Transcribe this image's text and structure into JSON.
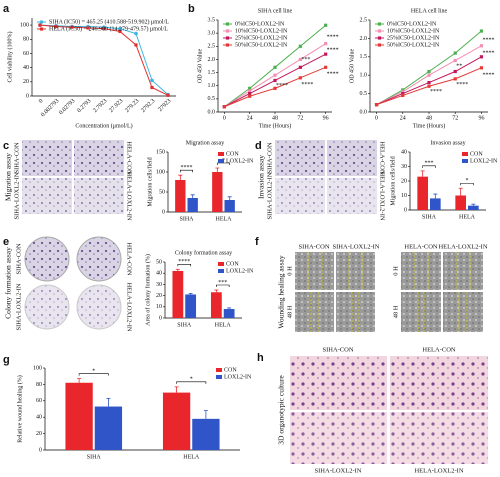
{
  "panels": {
    "labels": [
      "a",
      "b",
      "c",
      "d",
      "e",
      "f",
      "g",
      "h"
    ]
  },
  "chart_data": [
    {
      "type": "line",
      "x_label": "Concentration (μmol/L)",
      "y_label": "Cell viability (100%)",
      "categories": [
        "0",
        "0.002793",
        "0.02793",
        "0.2793",
        "2.7923",
        "27.923",
        "279.23",
        "2792.3",
        "27923"
      ],
      "ylim": [
        0,
        110
      ],
      "yticks": [
        0,
        20,
        40,
        60,
        80,
        100
      ],
      "series": [
        {
          "name": "SIHA (IC50) = 465.25 (410.588-519.902) μmol/L",
          "color": "#3fb7e0",
          "marker": "circle",
          "values": [
            100,
            99,
            98,
            98,
            97,
            95,
            88,
            22,
            2
          ]
        },
        {
          "name": "HELA (IC50) = 246.909 (14.279-479.57) μmol/L",
          "color": "#e03030",
          "marker": "square",
          "values": [
            100,
            98,
            97,
            96,
            95,
            91,
            72,
            12,
            1
          ]
        }
      ]
    },
    {
      "type": "line",
      "title": "SIHA cell line",
      "x_label": "Time (Hours)",
      "y_label": "OD 450 Value",
      "x": [
        0,
        24,
        48,
        72,
        96
      ],
      "xlim": [
        -6,
        102
      ],
      "xticks": [
        0,
        24,
        48,
        72,
        96
      ],
      "ylim": [
        0,
        3.5
      ],
      "yticks": [
        {
          "value": 0,
          "label": "0.0"
        },
        0.5,
        {
          "value": 1,
          "label": "1.0"
        },
        1.5,
        {
          "value": 2,
          "label": "2.0"
        },
        2.5,
        {
          "value": 3,
          "label": "3.0"
        },
        3.5
      ],
      "series": [
        {
          "name": "0%IC50-LOXL2-IN",
          "color": "#4caf50",
          "marker": "square",
          "values": [
            0.2,
            0.9,
            1.7,
            2.5,
            3.3
          ]
        },
        {
          "name": "10%IC50-LOXL2-IN",
          "color": "#f48fb1",
          "marker": "square",
          "values": [
            0.2,
            0.8,
            1.4,
            2.0,
            2.6
          ]
        },
        {
          "name": "25%IC50-LOXL2-IN",
          "color": "#c2185b",
          "marker": "square",
          "values": [
            0.2,
            0.7,
            1.2,
            1.7,
            2.2
          ]
        },
        {
          "name": "50%IC50-LOXL2-IN",
          "color": "#e53935",
          "marker": "square",
          "values": [
            0.2,
            0.6,
            0.9,
            1.3,
            1.7
          ]
        }
      ],
      "annotations": [
        {
          "x": 48,
          "y": 1.0,
          "text": "****"
        },
        {
          "x": 72,
          "y": 2.0,
          "text": "***"
        },
        {
          "x": 72,
          "y": 1.05,
          "text": "****"
        },
        {
          "x": 96,
          "y": 2.85,
          "text": "****"
        },
        {
          "x": 96,
          "y": 2.35,
          "text": "****"
        },
        {
          "x": 96,
          "y": 1.45,
          "text": "****"
        }
      ]
    },
    {
      "type": "line",
      "title": "HELA cell line",
      "x_label": "Time (Hours)",
      "y_label": "OD 450 Value",
      "x": [
        0,
        24,
        48,
        72,
        96
      ],
      "xlim": [
        -6,
        102
      ],
      "xticks": [
        0,
        24,
        48,
        72,
        96
      ],
      "ylim": [
        0,
        2.5
      ],
      "yticks": [
        {
          "value": 0,
          "label": "0.0"
        },
        0.5,
        {
          "value": 1,
          "label": "1.0"
        },
        1.5,
        {
          "value": 2,
          "label": "2.0"
        },
        2.5
      ],
      "series": [
        {
          "name": "0%IC50-LOXL2-IN",
          "color": "#4caf50",
          "marker": "square",
          "values": [
            0.2,
            0.6,
            1.1,
            1.6,
            2.2
          ]
        },
        {
          "name": "10%IC50-LOXL2-IN",
          "color": "#f48fb1",
          "marker": "square",
          "values": [
            0.2,
            0.55,
            1.0,
            1.4,
            1.8
          ]
        },
        {
          "name": "25%IC50-LOXL2-IN",
          "color": "#c2185b",
          "marker": "square",
          "values": [
            0.2,
            0.5,
            0.8,
            1.1,
            1.5
          ]
        },
        {
          "name": "50%IC50-LOXL2-IN",
          "color": "#e53935",
          "marker": "square",
          "values": [
            0.2,
            0.45,
            0.7,
            0.9,
            1.2
          ]
        }
      ],
      "annotations": [
        {
          "x": 48,
          "y": 0.55,
          "text": "****"
        },
        {
          "x": 72,
          "y": 1.25,
          "text": "**"
        },
        {
          "x": 72,
          "y": 0.75,
          "text": "****"
        },
        {
          "x": 96,
          "y": 1.95,
          "text": "****"
        },
        {
          "x": 96,
          "y": 1.6,
          "text": "****"
        },
        {
          "x": 96,
          "y": 1.0,
          "text": "****"
        }
      ]
    },
    {
      "type": "bar",
      "title": "Migration assay",
      "y_label": "Migration cells/field",
      "categories": [
        "SIHA",
        "HELA"
      ],
      "ylim": [
        0,
        150
      ],
      "yticks": [
        0,
        50,
        100,
        150
      ],
      "series": [
        {
          "name": "CON",
          "color": "#e8262b",
          "values": [
            80,
            100
          ],
          "errors": [
            12,
            10
          ]
        },
        {
          "name": "LOXL2-IN",
          "color": "#2f55c8",
          "values": [
            35,
            30
          ],
          "errors": [
            8,
            8
          ]
        }
      ],
      "significance": [
        "****",
        "*"
      ]
    },
    {
      "type": "bar",
      "title": "Invasion assay",
      "y_label": "Migration cells/field",
      "categories": [
        "SIHA",
        "HELA"
      ],
      "ylim": [
        0,
        40
      ],
      "yticks": [
        0,
        10,
        20,
        30,
        40
      ],
      "series": [
        {
          "name": "CON",
          "color": "#e8262b",
          "values": [
            23,
            10
          ],
          "errors": [
            4,
            5
          ]
        },
        {
          "name": "LOXL2-IN",
          "color": "#2f55c8",
          "values": [
            8,
            3
          ],
          "errors": [
            3,
            1
          ]
        }
      ],
      "significance": [
        "***",
        "*"
      ]
    },
    {
      "type": "bar",
      "title": "Colony formation assay",
      "y_label": "Area of colony formation (%)",
      "categories": [
        "SIHA",
        "HELA"
      ],
      "ylim": [
        0,
        50
      ],
      "yticks": [
        0,
        10,
        20,
        30,
        40,
        50
      ],
      "series": [
        {
          "name": "CON",
          "color": "#e8262b",
          "values": [
            42,
            23
          ],
          "errors": [
            1.5,
            2
          ]
        },
        {
          "name": "LOXL2-IN",
          "color": "#2f55c8",
          "values": [
            21,
            8
          ],
          "errors": [
            1,
            1
          ]
        }
      ],
      "significance": [
        "****",
        "***"
      ]
    },
    {
      "type": "bar",
      "y_label": "Relative wound healing (%)",
      "categories": [
        "SIHA",
        "HELA"
      ],
      "ylim": [
        0,
        100
      ],
      "yticks": [
        0,
        20,
        40,
        60,
        80,
        100
      ],
      "series": [
        {
          "name": "CON",
          "color": "#e8262b",
          "values": [
            82,
            70
          ],
          "errors": [
            5,
            7
          ]
        },
        {
          "name": "LOXL2-IN",
          "color": "#2f55c8",
          "values": [
            53,
            38
          ],
          "errors": [
            10,
            10
          ]
        }
      ],
      "significance": [
        "*",
        "*"
      ]
    }
  ],
  "images": {
    "c": {
      "title": "Migration assay",
      "left": [
        "SIHA-CON",
        "SIHA-LOXL2-IN"
      ],
      "right": [
        "HELA-CON",
        "HELA-LOXL2-IN"
      ]
    },
    "d": {
      "title": "Invasion assay",
      "left": [
        "SIHA-CON",
        "SIHA-LOXL2-IN"
      ],
      "right": [
        "HELA-CON",
        "HELA-LOXL2-IN"
      ]
    },
    "e": {
      "title": "Colony formation assay",
      "left": [
        "SIHA-CON",
        "SIHA-LOXL2-IN"
      ],
      "right": [
        "HELA-CON",
        "HELA-LOXL2-IN"
      ]
    },
    "f": {
      "title": "Wounding healing assay",
      "columns": [
        "SIHA-CON",
        "SIHA-LOXL2-IN",
        "HELA-CON",
        "HELA-LOXL2-IN"
      ],
      "rows": [
        "0 H",
        "48 H"
      ]
    },
    "h": {
      "title": "3D organotypic culture",
      "labels": [
        "SIHA-CON",
        "HELA-CON",
        "SIHA-LOXL2-IN",
        "HELA-LOXL2-IN"
      ]
    }
  }
}
